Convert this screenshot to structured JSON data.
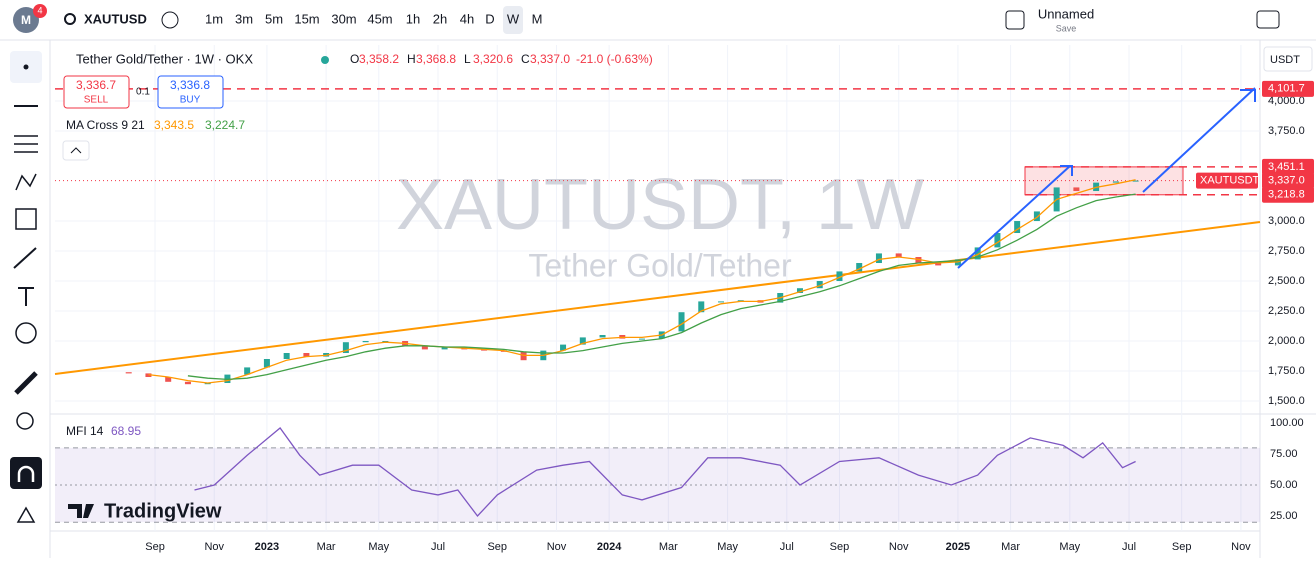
{
  "toolbar": {
    "badge": "4",
    "symbol": "XAUTUSD",
    "intervals": [
      "1m",
      "3m",
      "5m",
      "15m",
      "30m",
      "45m",
      "1h",
      "2h",
      "4h",
      "D",
      "W",
      "M"
    ],
    "layout_name": "Unnamed",
    "save": "Save"
  },
  "legend": {
    "sell": {
      "value": 3336.7,
      "label": "3,336.7"
    },
    "sell_text": "SELL",
    "spread": "0.1",
    "buy": {
      "value": 3336.8,
      "label": "3,336.8"
    },
    "buy_text": "BUY",
    "ma_name": "MA Cross 9 21",
    "ma9_last": {
      "value": 3343.5,
      "label": "3,343.5"
    },
    "ma21_last": {
      "value": 3224.7,
      "label": "3,224.7"
    },
    "ohlc": [
      {
        "key": "O",
        "value": 3358.2,
        "label": "3,358.2"
      },
      {
        "key": "H",
        "value": 3368.8,
        "label": "3,368.8"
      },
      {
        "key": "L",
        "value": 3320.6,
        "label": "3,320.6"
      },
      {
        "key": "C",
        "value": 3337.0,
        "label": "3,337.0"
      }
    ],
    "change": "-21.0 (-0.63%)"
  },
  "watermark": {
    "main": "XAUTUSDT, 1W",
    "sub": "Tether Gold/Tether"
  },
  "currency": "USDT",
  "brand": "TradingView",
  "chart_data": [
    {
      "type": "candlestick",
      "title": "Tether Gold/Tether · 1W · OKX",
      "x": [
        -24,
        -21,
        -18,
        -15,
        -12,
        -9,
        -6,
        -3,
        0,
        3,
        6,
        9,
        12,
        15,
        18,
        21,
        24,
        27,
        30,
        33,
        36,
        39,
        42,
        45,
        48,
        51,
        54,
        57,
        60,
        63,
        66,
        69,
        72,
        75,
        78,
        81,
        84,
        87,
        90,
        93,
        96,
        99,
        102,
        105,
        108,
        111,
        114,
        117,
        120,
        123,
        126,
        129,
        132
      ],
      "series": [
        {
          "name": "Close",
          "color": "#26a69a",
          "down_color": "#ef5350",
          "values": [
            1740,
            1730,
            1700,
            1660,
            1640,
            1650,
            1720,
            1780,
            1850,
            1900,
            1870,
            1900,
            1990,
            2000,
            2000,
            1960,
            1930,
            1950,
            1930,
            1920,
            1910,
            1840,
            1920,
            1970,
            2030,
            2050,
            2020,
            2020,
            2080,
            2240,
            2330,
            2330,
            2340,
            2320,
            2400,
            2440,
            2500,
            2580,
            2650,
            2730,
            2700,
            2650,
            2630,
            2680,
            2780,
            2900,
            3000,
            3080,
            3280,
            3250,
            3320,
            3330,
            3337
          ]
        },
        {
          "name": "MA 9",
          "color": "#ff9800",
          "values": [
            null,
            null,
            1720,
            1700,
            1670,
            1650,
            1670,
            1720,
            1780,
            1840,
            1870,
            1880,
            1920,
            1970,
            1990,
            1980,
            1960,
            1950,
            1940,
            1930,
            1920,
            1880,
            1880,
            1920,
            1980,
            2020,
            2030,
            2030,
            2050,
            2140,
            2250,
            2310,
            2330,
            2330,
            2360,
            2410,
            2460,
            2530,
            2600,
            2680,
            2700,
            2680,
            2650,
            2660,
            2720,
            2820,
            2930,
            3030,
            3180,
            3230,
            3280,
            3310,
            3343.5
          ]
        },
        {
          "name": "MA 21",
          "color": "#43a047",
          "values": [
            null,
            null,
            null,
            null,
            1710,
            1690,
            1680,
            1690,
            1720,
            1760,
            1800,
            1840,
            1870,
            1910,
            1940,
            1960,
            1960,
            1950,
            1950,
            1940,
            1930,
            1910,
            1900,
            1900,
            1920,
            1950,
            1980,
            2000,
            2020,
            2070,
            2150,
            2220,
            2270,
            2300,
            2330,
            2370,
            2410,
            2460,
            2520,
            2580,
            2630,
            2650,
            2660,
            2670,
            2700,
            2760,
            2840,
            2930,
            3040,
            3110,
            3170,
            3200,
            3224.7
          ]
        }
      ],
      "xlim": [
        -32.2,
        150.9
      ],
      "xticks": [
        {
          "value": -17,
          "label": "Sep"
        },
        {
          "value": -8,
          "label": "Nov"
        },
        {
          "value": 0,
          "label": "2023"
        },
        {
          "value": 9,
          "label": "Mar"
        },
        {
          "value": 17,
          "label": "May"
        },
        {
          "value": 26,
          "label": "Jul"
        },
        {
          "value": 35,
          "label": "Sep"
        },
        {
          "value": 44,
          "label": "Nov"
        },
        {
          "value": 52,
          "label": "2024"
        },
        {
          "value": 61,
          "label": "Mar"
        },
        {
          "value": 70,
          "label": "May"
        },
        {
          "value": 79,
          "label": "Jul"
        },
        {
          "value": 87,
          "label": "Sep"
        },
        {
          "value": 96,
          "label": "Nov"
        },
        {
          "value": 105,
          "label": "2025"
        },
        {
          "value": 113,
          "label": "Mar"
        },
        {
          "value": 122,
          "label": "May"
        },
        {
          "value": 131,
          "label": "Jul"
        },
        {
          "value": 139,
          "label": "Sep"
        },
        {
          "value": 148,
          "label": "Nov"
        }
      ],
      "ylim": [
        1400,
        4467
      ],
      "yticks": [
        {
          "value": 1500,
          "label": "1,500.0"
        },
        {
          "value": 1750,
          "label": "1,750.0"
        },
        {
          "value": 2000,
          "label": "2,000.0"
        },
        {
          "value": 2250,
          "label": "2,250.0"
        },
        {
          "value": 2500,
          "label": "2,500.0"
        },
        {
          "value": 2750,
          "label": "2,750.0"
        },
        {
          "value": 3000,
          "label": "3,000.0"
        },
        {
          "value": 3750,
          "label": "3,750.0"
        },
        {
          "value": 4000,
          "label": "4,000.0"
        }
      ],
      "price_tags": [
        {
          "value": 4101.7,
          "label": "4,101.7"
        },
        {
          "value": 3451.1,
          "label": "3,451.1"
        },
        {
          "value": 3337.0,
          "label": "3,337.0"
        },
        {
          "value": 3218.8,
          "label": "3,218.8"
        }
      ],
      "symbol_tag": "XAUTUSDT",
      "grid": true
    },
    {
      "type": "line",
      "title": "MFI 14",
      "last": {
        "value": 68.95,
        "label": "68.95"
      },
      "x": [
        -11,
        -8,
        -3,
        2,
        5,
        8,
        13,
        17,
        22,
        26,
        29,
        32,
        35,
        41,
        45,
        49,
        54,
        57,
        63,
        67,
        72,
        78,
        81,
        87,
        93,
        99,
        104,
        108,
        111,
        116,
        121,
        124,
        127,
        130,
        132
      ],
      "values": [
        46,
        50,
        74,
        96,
        74,
        58,
        66,
        66,
        46,
        42,
        46,
        25,
        42,
        62,
        66,
        69,
        42,
        38,
        48,
        72,
        72,
        66,
        50,
        69,
        72,
        58,
        50,
        58,
        74,
        88,
        82,
        72,
        84,
        64,
        68.95
      ],
      "color": "#7e57c2",
      "band": [
        20,
        80
      ],
      "xlim": [
        -32.2,
        150.9
      ],
      "ylim": [
        13.7,
        106.5
      ],
      "yticks": [
        {
          "value": 25,
          "label": "25.00"
        },
        {
          "value": 50,
          "label": "50.00"
        },
        {
          "value": 75,
          "label": "75.00"
        },
        {
          "value": 100,
          "label": "100.00"
        }
      ]
    }
  ]
}
